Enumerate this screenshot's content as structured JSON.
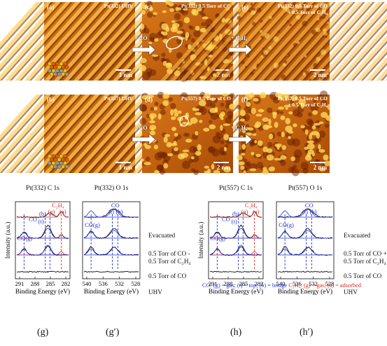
{
  "stm_panels": [
    {
      "id": "a",
      "letter": "(a)",
      "label": "Pt(332) UHV",
      "scale": "1 nm",
      "style": "steps-plain"
    },
    {
      "id": "c",
      "letter": "(c)",
      "label": "Pt(332) 0.5 Torr of CO",
      "scale": "2 nm",
      "style": "clusters"
    },
    {
      "id": "e",
      "letter": "(e)",
      "label_lines": [
        "Pt(332) 0.5 Torr of CO",
        "+ 0.5 Torr of C₂H₄"
      ],
      "scale": "2 nm",
      "style": "steps-rough"
    },
    {
      "id": "b",
      "letter": "(b)",
      "label": "Pt(557) UHV",
      "scale": "1 nm",
      "style": "steps-plain"
    },
    {
      "id": "d",
      "letter": "(d)",
      "label": "Pt(557) 0.5 Torr of CO",
      "scale": "2 nm",
      "style": "clusters"
    },
    {
      "id": "f",
      "letter": "(f)",
      "label_lines": [
        "Pt(557) 0.5 Torr of CO",
        "+ 0.5 Torr of C₂H₄"
      ],
      "scale": "2 nm",
      "style": "clusters-dense"
    }
  ],
  "arrows": {
    "co": "+ CO",
    "c2h4": "+ C₂H₄"
  },
  "xps_panels": [
    {
      "id": "g",
      "title": "Pt(332) C 1s",
      "panel_label": "(g)",
      "x_ticks": [
        "291",
        "288",
        "285",
        "282"
      ],
      "peak_labels": {
        "co_gas": "CO(g)",
        "co_b": "(b)",
        "co_t": "(t)",
        "c2h4": "C₂H₄",
        "c2h4_g": "(g)",
        "c2h4_a": "(a)",
        "co": "CO"
      }
    },
    {
      "id": "g-prime",
      "title": "Pt(332) O 1s",
      "panel_label": "(g′)",
      "x_ticks": [
        "540",
        "536",
        "532",
        "528"
      ],
      "peak_labels": {
        "co": "CO",
        "t": "(t)",
        "b": "(b)",
        "co_gas": "CO(g)"
      }
    },
    {
      "id": "h",
      "title": "Pt(557) C 1s",
      "panel_label": "(h)",
      "x_ticks": [
        "291",
        "288",
        "285",
        "282"
      ],
      "peak_labels": {
        "co_gas": "CO(g)",
        "co_b": "(b)",
        "co_t": "(t)",
        "c2h4": "C₂H₄",
        "c2h4_g": "(g)",
        "c2h4_a": "(a)",
        "co": "CO"
      }
    },
    {
      "id": "h-prime",
      "title": "Pt(557) O 1s",
      "panel_label": "(h′)",
      "x_ticks": [
        "540",
        "536",
        "532",
        "528"
      ],
      "peak_labels": {
        "co": "CO",
        "t": "(t)",
        "b": "(b)",
        "co_gas": "CO(g)"
      }
    }
  ],
  "axis": {
    "y_label": "Intensity (a.u.)",
    "x_label": "Binding Energy (eV)"
  },
  "trace_labels_332": [
    "Evacuated",
    "0.5 Torr of CO -",
    "0.5 Torr of C₂H₄",
    "0.5 Torr of CO",
    "UHV"
  ],
  "trace_labels_557": [
    "Evacuated",
    "0.5 Torr of CO +",
    "0.5 Torr of C₂H₄",
    "0.5 Torr of CO",
    "UHV"
  ],
  "legend": {
    "blue_part": "CO: (g) = gas; (t) = top; (b) = bridge ",
    "red_part": "C₂H₄: (g) = gas; (a) = adsorbed"
  },
  "colors": {
    "blue": "#1f2fd6",
    "red": "#e0261f",
    "stm_dark": "#5a1a00",
    "stm_mid": "#c45a00",
    "stm_light": "#ffd24a"
  }
}
